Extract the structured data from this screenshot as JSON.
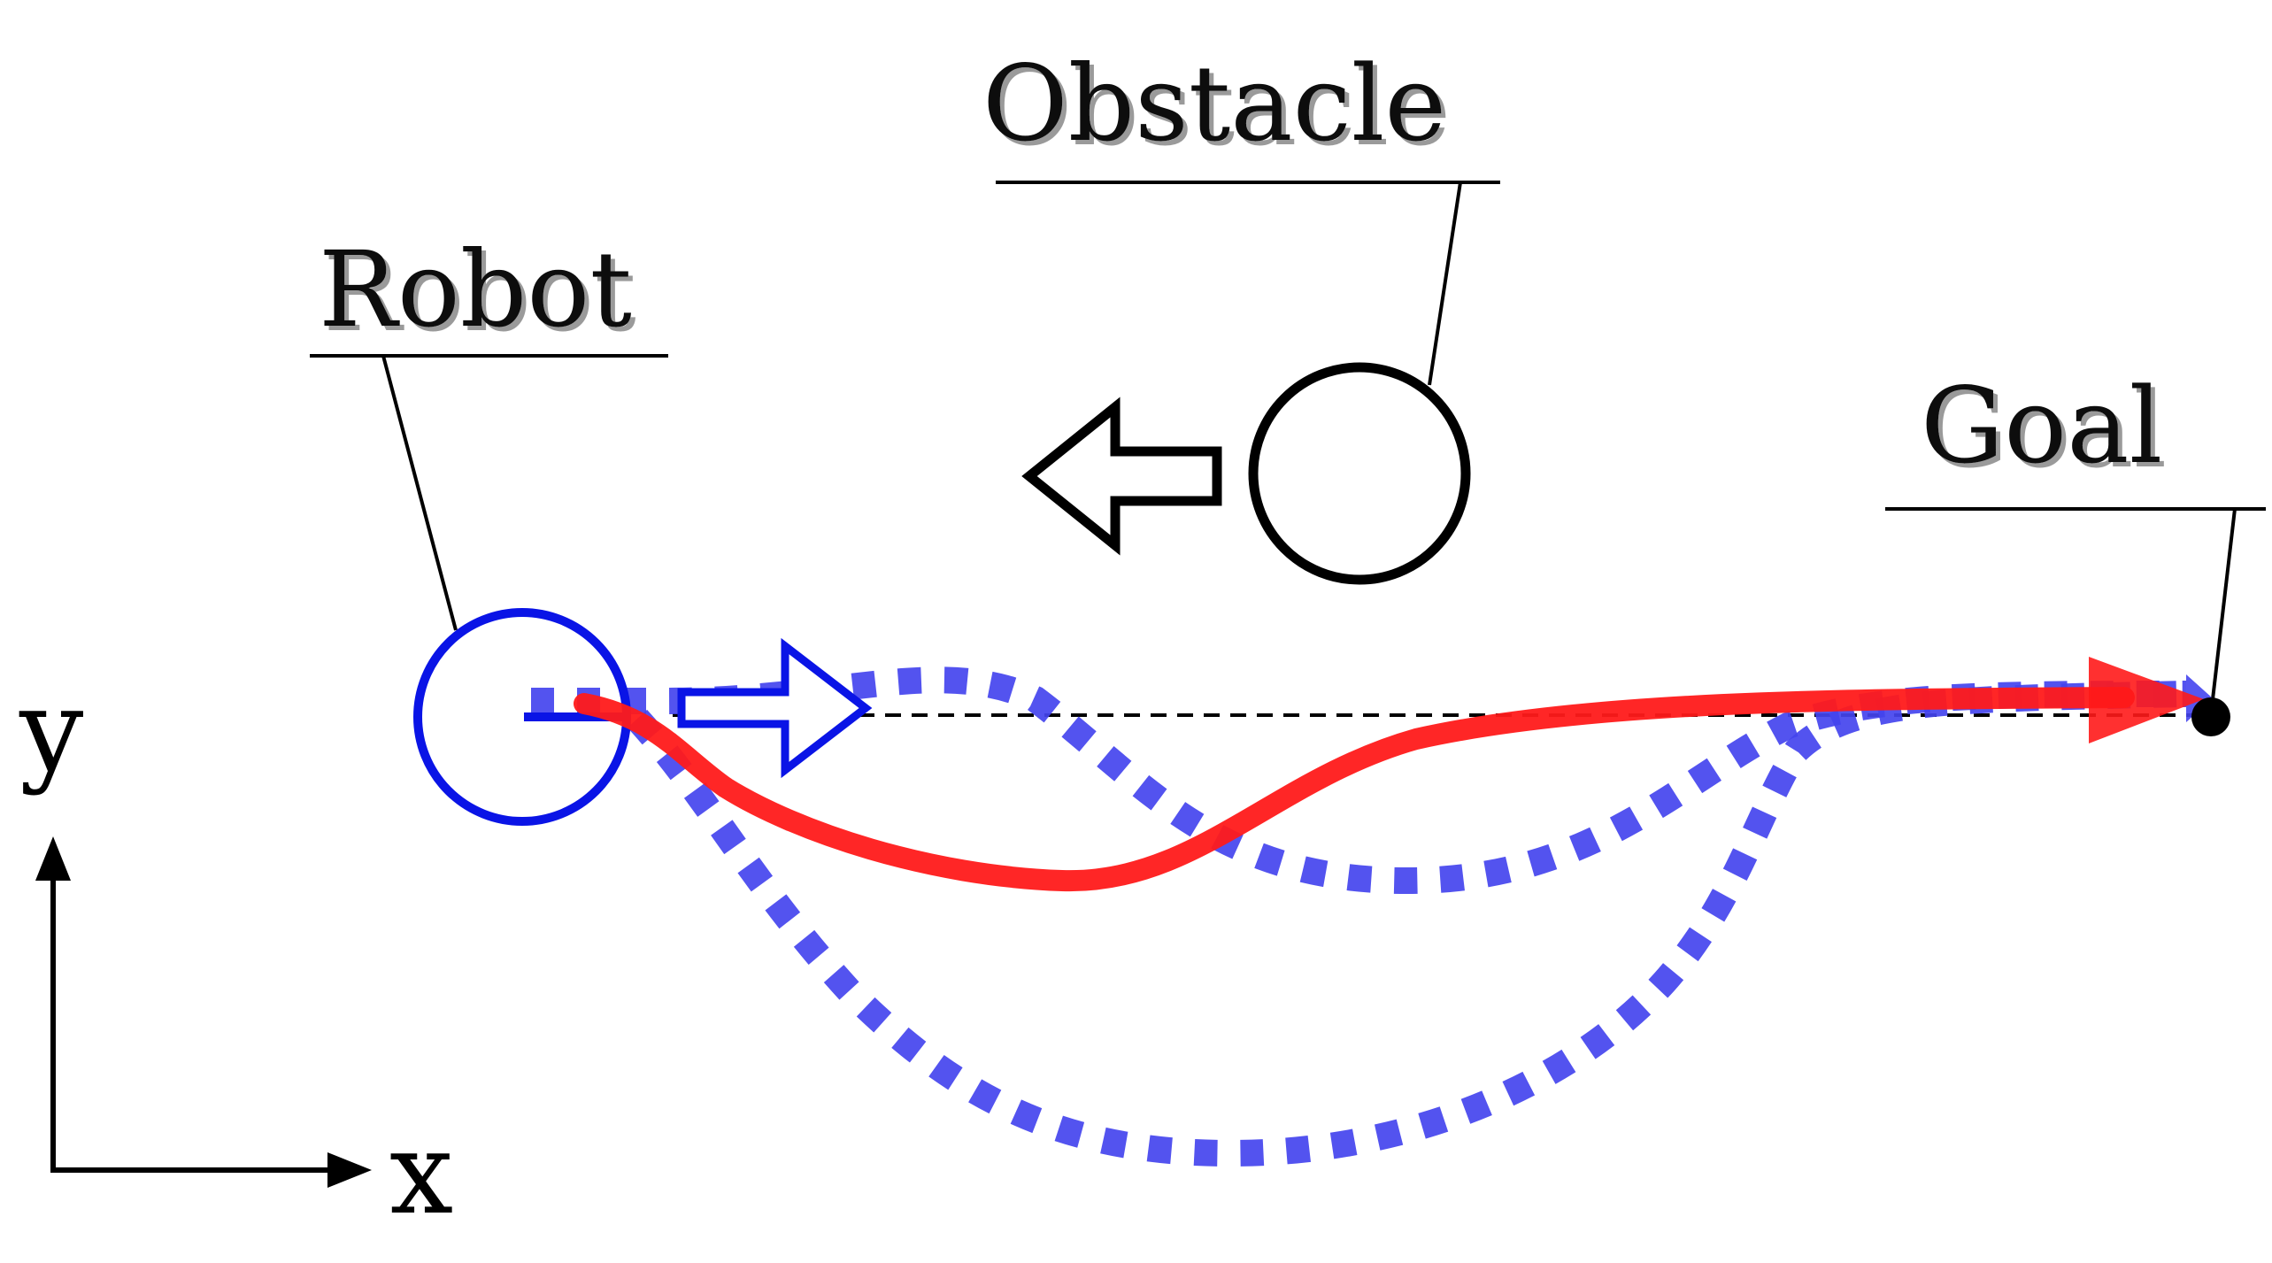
{
  "labels": {
    "obstacle": "Obstacle",
    "robot": "Robot",
    "goal": "Goal",
    "axis_x": "x",
    "axis_y": "y"
  },
  "colors": {
    "robot": "#0a14e6",
    "planned_path": "#ff1a1a",
    "alternative_paths": "#4444ee",
    "outline": "#000000"
  }
}
